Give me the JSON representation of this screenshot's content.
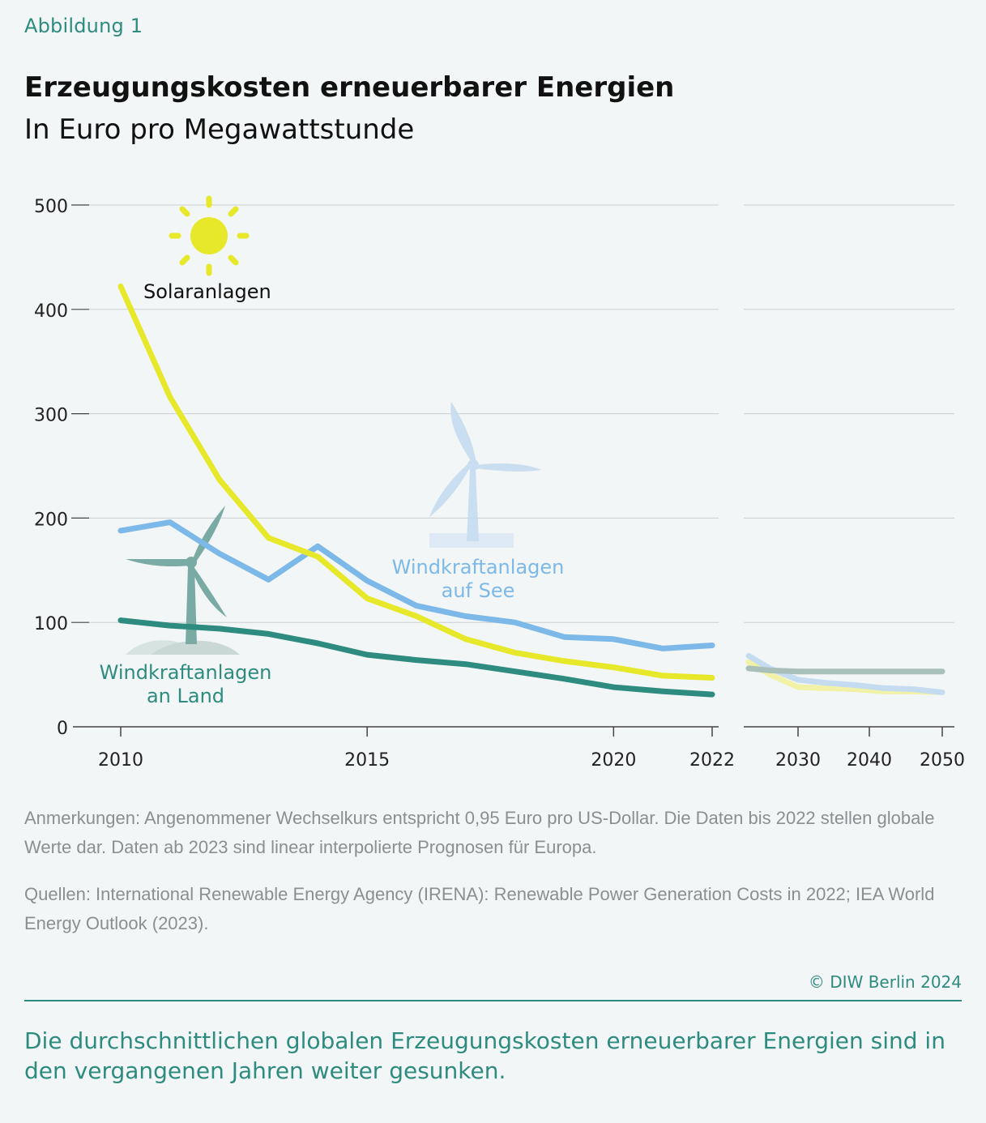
{
  "figure_label": "Abbildung 1",
  "title": "Erzeugungskosten erneuerbarer Energien",
  "subtitle": "In Euro pro Megawattstunde",
  "chart_data": {
    "type": "line",
    "title": "Erzeugungskosten erneuerbarer Energien",
    "ylabel": "In Euro pro Megawattstunde",
    "ylim": [
      0,
      500
    ],
    "yticks": [
      0,
      100,
      200,
      300,
      400,
      500
    ],
    "grid": true,
    "legend": "inline labels",
    "panels": [
      {
        "name": "historical",
        "xlim": [
          2010,
          2022
        ],
        "xticks": [
          2010,
          2015,
          2020,
          2022
        ],
        "x": [
          2010,
          2011,
          2012,
          2013,
          2014,
          2015,
          2016,
          2017,
          2018,
          2019,
          2020,
          2021,
          2022
        ],
        "series": [
          {
            "name": "Solaranlagen",
            "color": "#e6e829",
            "values": [
              422,
              316,
              237,
              181,
              163,
              123,
              106,
              84,
              71,
              63,
              57,
              49,
              47
            ]
          },
          {
            "name": "Windkraftanlagen auf See",
            "color": "#7db9e8",
            "values": [
              188,
              196,
              166,
              141,
              173,
              140,
              116,
              106,
              100,
              86,
              84,
              75,
              78
            ]
          },
          {
            "name": "Windkraftanlagen an Land",
            "color": "#2e8b7f",
            "values": [
              102,
              97,
              94,
              89,
              80,
              69,
              64,
              60,
              53,
              46,
              38,
              34,
              31
            ]
          }
        ]
      },
      {
        "name": "projection",
        "xlim": [
          2023,
          2050
        ],
        "xticks": [
          2030,
          2040,
          2050
        ],
        "x": [
          2023,
          2026,
          2030,
          2034,
          2038,
          2042,
          2046,
          2050
        ],
        "series": [
          {
            "name": "Solaranlagen",
            "color": "#f1f2a6",
            "values": [
              62,
              50,
              38,
              37,
              36,
              34,
              34,
              33
            ]
          },
          {
            "name": "Windkraftanlagen auf See",
            "color": "#c5dcf0",
            "values": [
              68,
              56,
              45,
              42,
              40,
              37,
              36,
              33
            ]
          },
          {
            "name": "Windkraftanlagen an Land",
            "color": "#a8bfba",
            "values": [
              56,
              54,
              53,
              53,
              53,
              53,
              53,
              53
            ]
          }
        ]
      }
    ],
    "annotations": [
      {
        "text": "Solaranlagen",
        "color": "#111111"
      },
      {
        "text": "Windkraftanlagen auf See",
        "lines": [
          "Windkraftanlagen",
          "auf See"
        ],
        "color": "#7db9e8"
      },
      {
        "text": "Windkraftanlagen an Land",
        "lines": [
          "Windkraftanlagen",
          "an Land"
        ],
        "color": "#2e8b7f"
      }
    ]
  },
  "notes": {
    "anmerkungen": "Anmerkungen: Angenommener Wechselkurs entspricht 0,95 Euro pro US-Dollar. Die Daten bis 2022 stellen globale Werte dar. Daten ab 2023 sind linear interpolierte Prognosen für Europa.",
    "quellen": "Quellen: International Renewable Energy Agency (IRENA): Renewable Power Generation Costs in 2022;  IEA World Energy Outlook (2023)."
  },
  "copyright": "© DIW Berlin 2024",
  "caption": "Die durchschnittlichen globalen Erzeugungskosten erneuerbarer Energien sind in den vergangenen Jahren weiter gesunken.",
  "icons": [
    "sun-icon",
    "offshore-wind-turbine-icon",
    "onshore-wind-turbine-icon"
  ]
}
